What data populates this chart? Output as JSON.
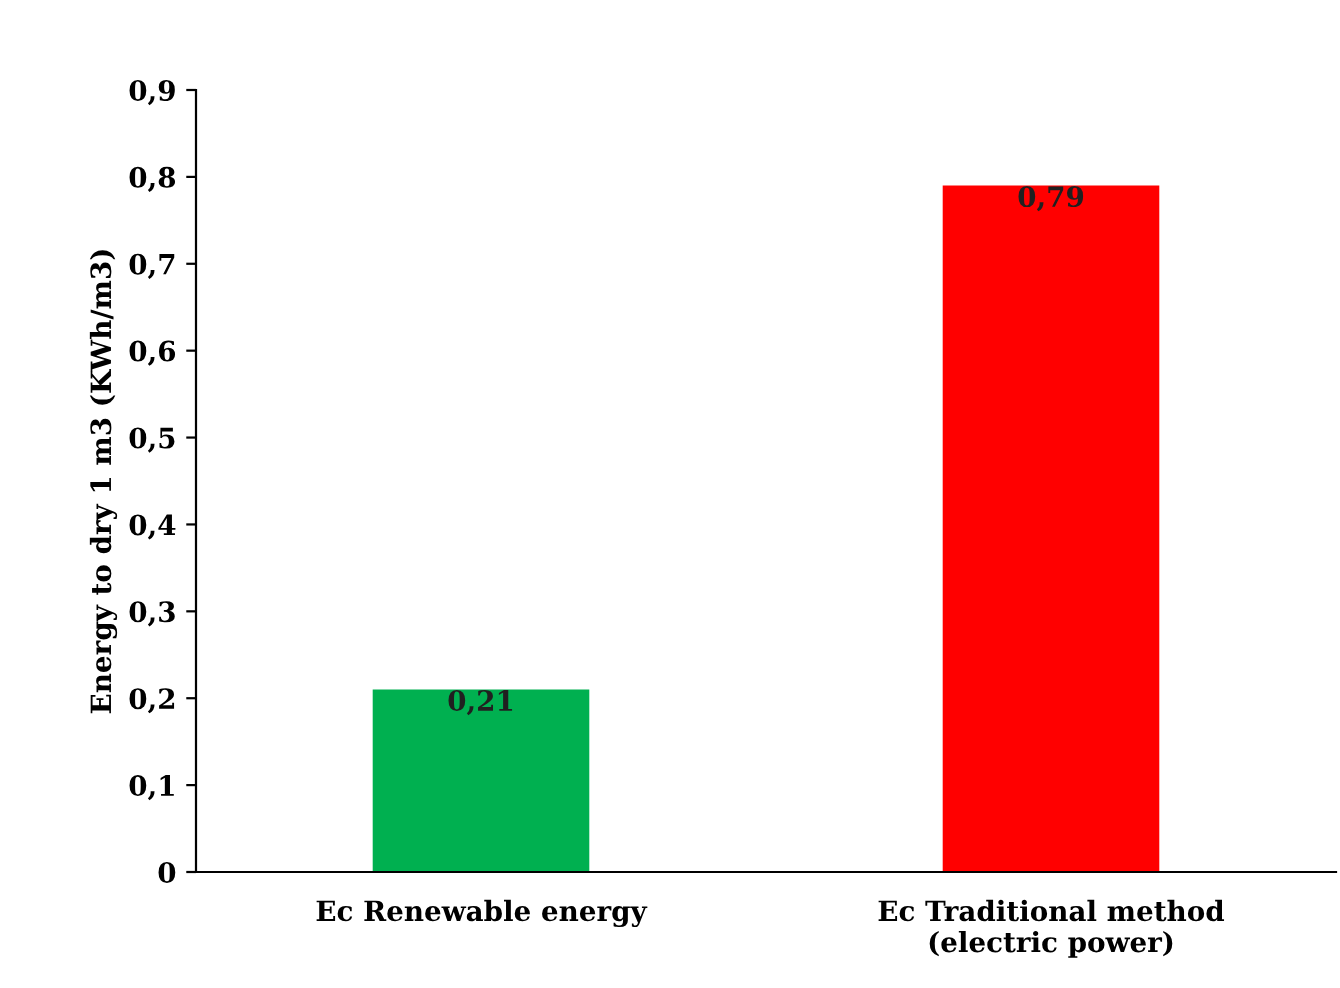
{
  "chart_data": {
    "type": "bar",
    "ylabel": "Energy to dry 1 m3 (KWh/m3)",
    "categories": [
      "Ec Renewable energy",
      "Ec Traditional method\n(electric power)"
    ],
    "values": [
      0.21,
      0.79
    ],
    "colors": [
      "#00b050",
      "#ff0000"
    ],
    "value_labels": [
      "0,21",
      "0,79"
    ],
    "ylim": [
      0,
      0.9
    ],
    "yticks": [
      0,
      {
        "value": 0.1,
        "label": "0,1"
      },
      {
        "value": 0.2,
        "label": "0,2"
      },
      {
        "value": 0.3,
        "label": "0,3"
      },
      {
        "value": 0.4,
        "label": "0,4"
      },
      {
        "value": 0.5,
        "label": "0,5"
      },
      {
        "value": 0.6,
        "label": "0,6"
      },
      {
        "value": 0.7,
        "label": "0,7"
      },
      {
        "value": 0.8,
        "label": "0,8"
      },
      {
        "value": 0.9,
        "label": "0,9"
      }
    ],
    "grid": false,
    "legend": false
  }
}
